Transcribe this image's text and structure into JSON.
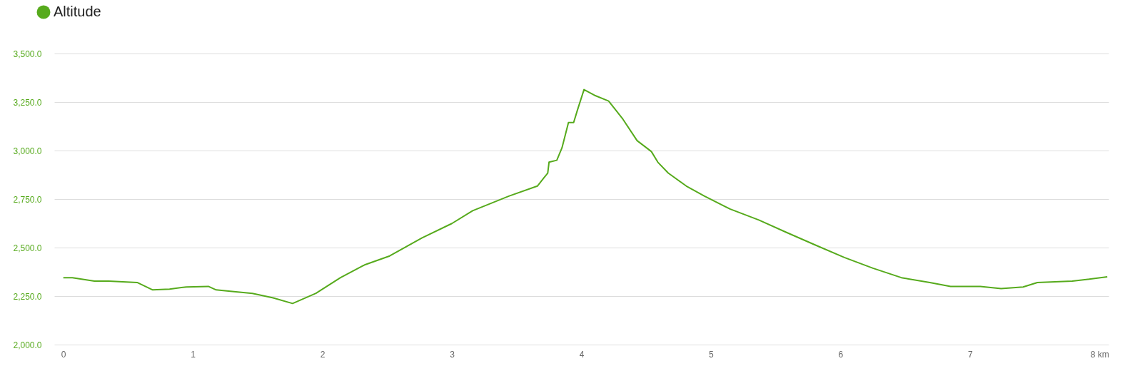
{
  "chart_data": {
    "type": "line",
    "legend": "top left",
    "grid": "y",
    "marker": "none",
    "line_style": "solid",
    "xlim": [
      -0.07,
      8.07
    ],
    "xticks": [
      0,
      1,
      2,
      3,
      4,
      5,
      6,
      7,
      {
        "value": 8,
        "label": "8 km"
      }
    ],
    "ylim": [
      2000,
      3500
    ],
    "yticks": [
      {
        "value": 2000,
        "label": "2,000.0"
      },
      {
        "value": 2250,
        "label": "2,250.0"
      },
      {
        "value": 2500,
        "label": "2,500.0"
      },
      {
        "value": 2750,
        "label": "2,750.0"
      },
      {
        "value": 3000,
        "label": "3,000.0"
      },
      {
        "value": 3250,
        "label": "3,250.0"
      },
      {
        "value": 3500,
        "label": "3,500.0"
      }
    ],
    "x": [
      0,
      0.07,
      0.24,
      0.35,
      0.57,
      0.69,
      0.82,
      0.95,
      1.12,
      1.18,
      1.29,
      1.46,
      1.62,
      1.77,
      1.95,
      2.14,
      2.33,
      2.52,
      2.77,
      3.0,
      3.16,
      3.44,
      3.66,
      3.74,
      3.75,
      3.81,
      3.85,
      3.9,
      3.94,
      3.97,
      4.02,
      4.1,
      4.21,
      4.32,
      4.43,
      4.54,
      4.59,
      4.67,
      4.81,
      4.95,
      5.15,
      5.37,
      5.58,
      5.81,
      6.03,
      6.25,
      6.47,
      6.69,
      6.85,
      7.08,
      7.24,
      7.41,
      7.52,
      7.79,
      8.06
    ],
    "series": [
      {
        "name": "Altitude",
        "color": "#56aa1c",
        "values": [
          2345,
          2345,
          2327,
          2327,
          2320,
          2282,
          2286,
          2297,
          2300,
          2282,
          2275,
          2264,
          2241,
          2212,
          2264,
          2345,
          2412,
          2457,
          2550,
          2624,
          2690,
          2765,
          2817,
          2884,
          2940,
          2950,
          3014,
          3144,
          3144,
          3210,
          3314,
          3285,
          3255,
          3162,
          3051,
          2995,
          2940,
          2884,
          2817,
          2765,
          2698,
          2642,
          2579,
          2512,
          2449,
          2394,
          2345,
          2320,
          2300,
          2300,
          2289,
          2297,
          2320,
          2327,
          2349
        ]
      }
    ]
  }
}
